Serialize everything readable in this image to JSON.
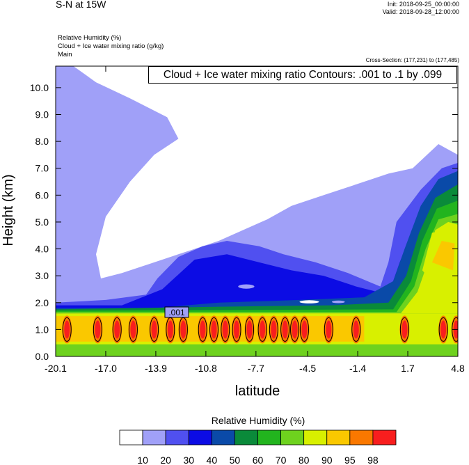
{
  "header": {
    "title": "S-N at 15W",
    "init": "Init: 2018-09-25_00:00:00",
    "valid": "Valid: 2018-09-28_12:00:00",
    "fields": [
      "Relative Humidity   (%)",
      "Cloud + Ice water mixing ratio   (g/kg)",
      "Main"
    ],
    "cross_section": "Cross-Section: (177,231) to (177,485)"
  },
  "chart_data": {
    "type": "heatmap",
    "xlabel": "latitude",
    "ylabel": "Height (km)",
    "x_ticks": [
      "-20.1",
      "-17.0",
      "-13.9",
      "-10.8",
      "-7.7",
      "-4.5",
      "-1.4",
      "1.7",
      "4.8"
    ],
    "y_ticks": [
      "0.0",
      "1.0",
      "2.0",
      "3.0",
      "4.0",
      "5.0",
      "6.0",
      "7.0",
      "8.0",
      "9.0",
      "10.0"
    ],
    "xlim": [
      -20.1,
      4.8
    ],
    "ylim": [
      0,
      10.8
    ],
    "contour_annotation": "Cloud + Ice water mixing ratio Contours: .001 to .1 by .099",
    "contour_label": ".001",
    "colorbar": {
      "title": "Relative Humidity  (%)",
      "levels": [
        "10",
        "20",
        "30",
        "40",
        "50",
        "60",
        "70",
        "80",
        "90",
        "95",
        "98"
      ],
      "colors": [
        "#ffffff",
        "#a0a0f8",
        "#5050f0",
        "#0c0ce4",
        "#0a4aa8",
        "#0a8a3a",
        "#22b41e",
        "#6ed21e",
        "#d8f000",
        "#fac800",
        "#fa7800",
        "#f81e1e"
      ]
    },
    "cloud_cells_lat": [
      -19.4,
      -17.5,
      -16.3,
      -15.3,
      -14.0,
      -13.0,
      -12.2,
      -11.0,
      -10.3,
      -9.6,
      -8.9,
      -8.1,
      -7.3,
      -6.6,
      -5.9,
      -5.3,
      -4.7,
      -3.2,
      -1.5,
      1.5,
      3.9,
      4.7
    ]
  }
}
